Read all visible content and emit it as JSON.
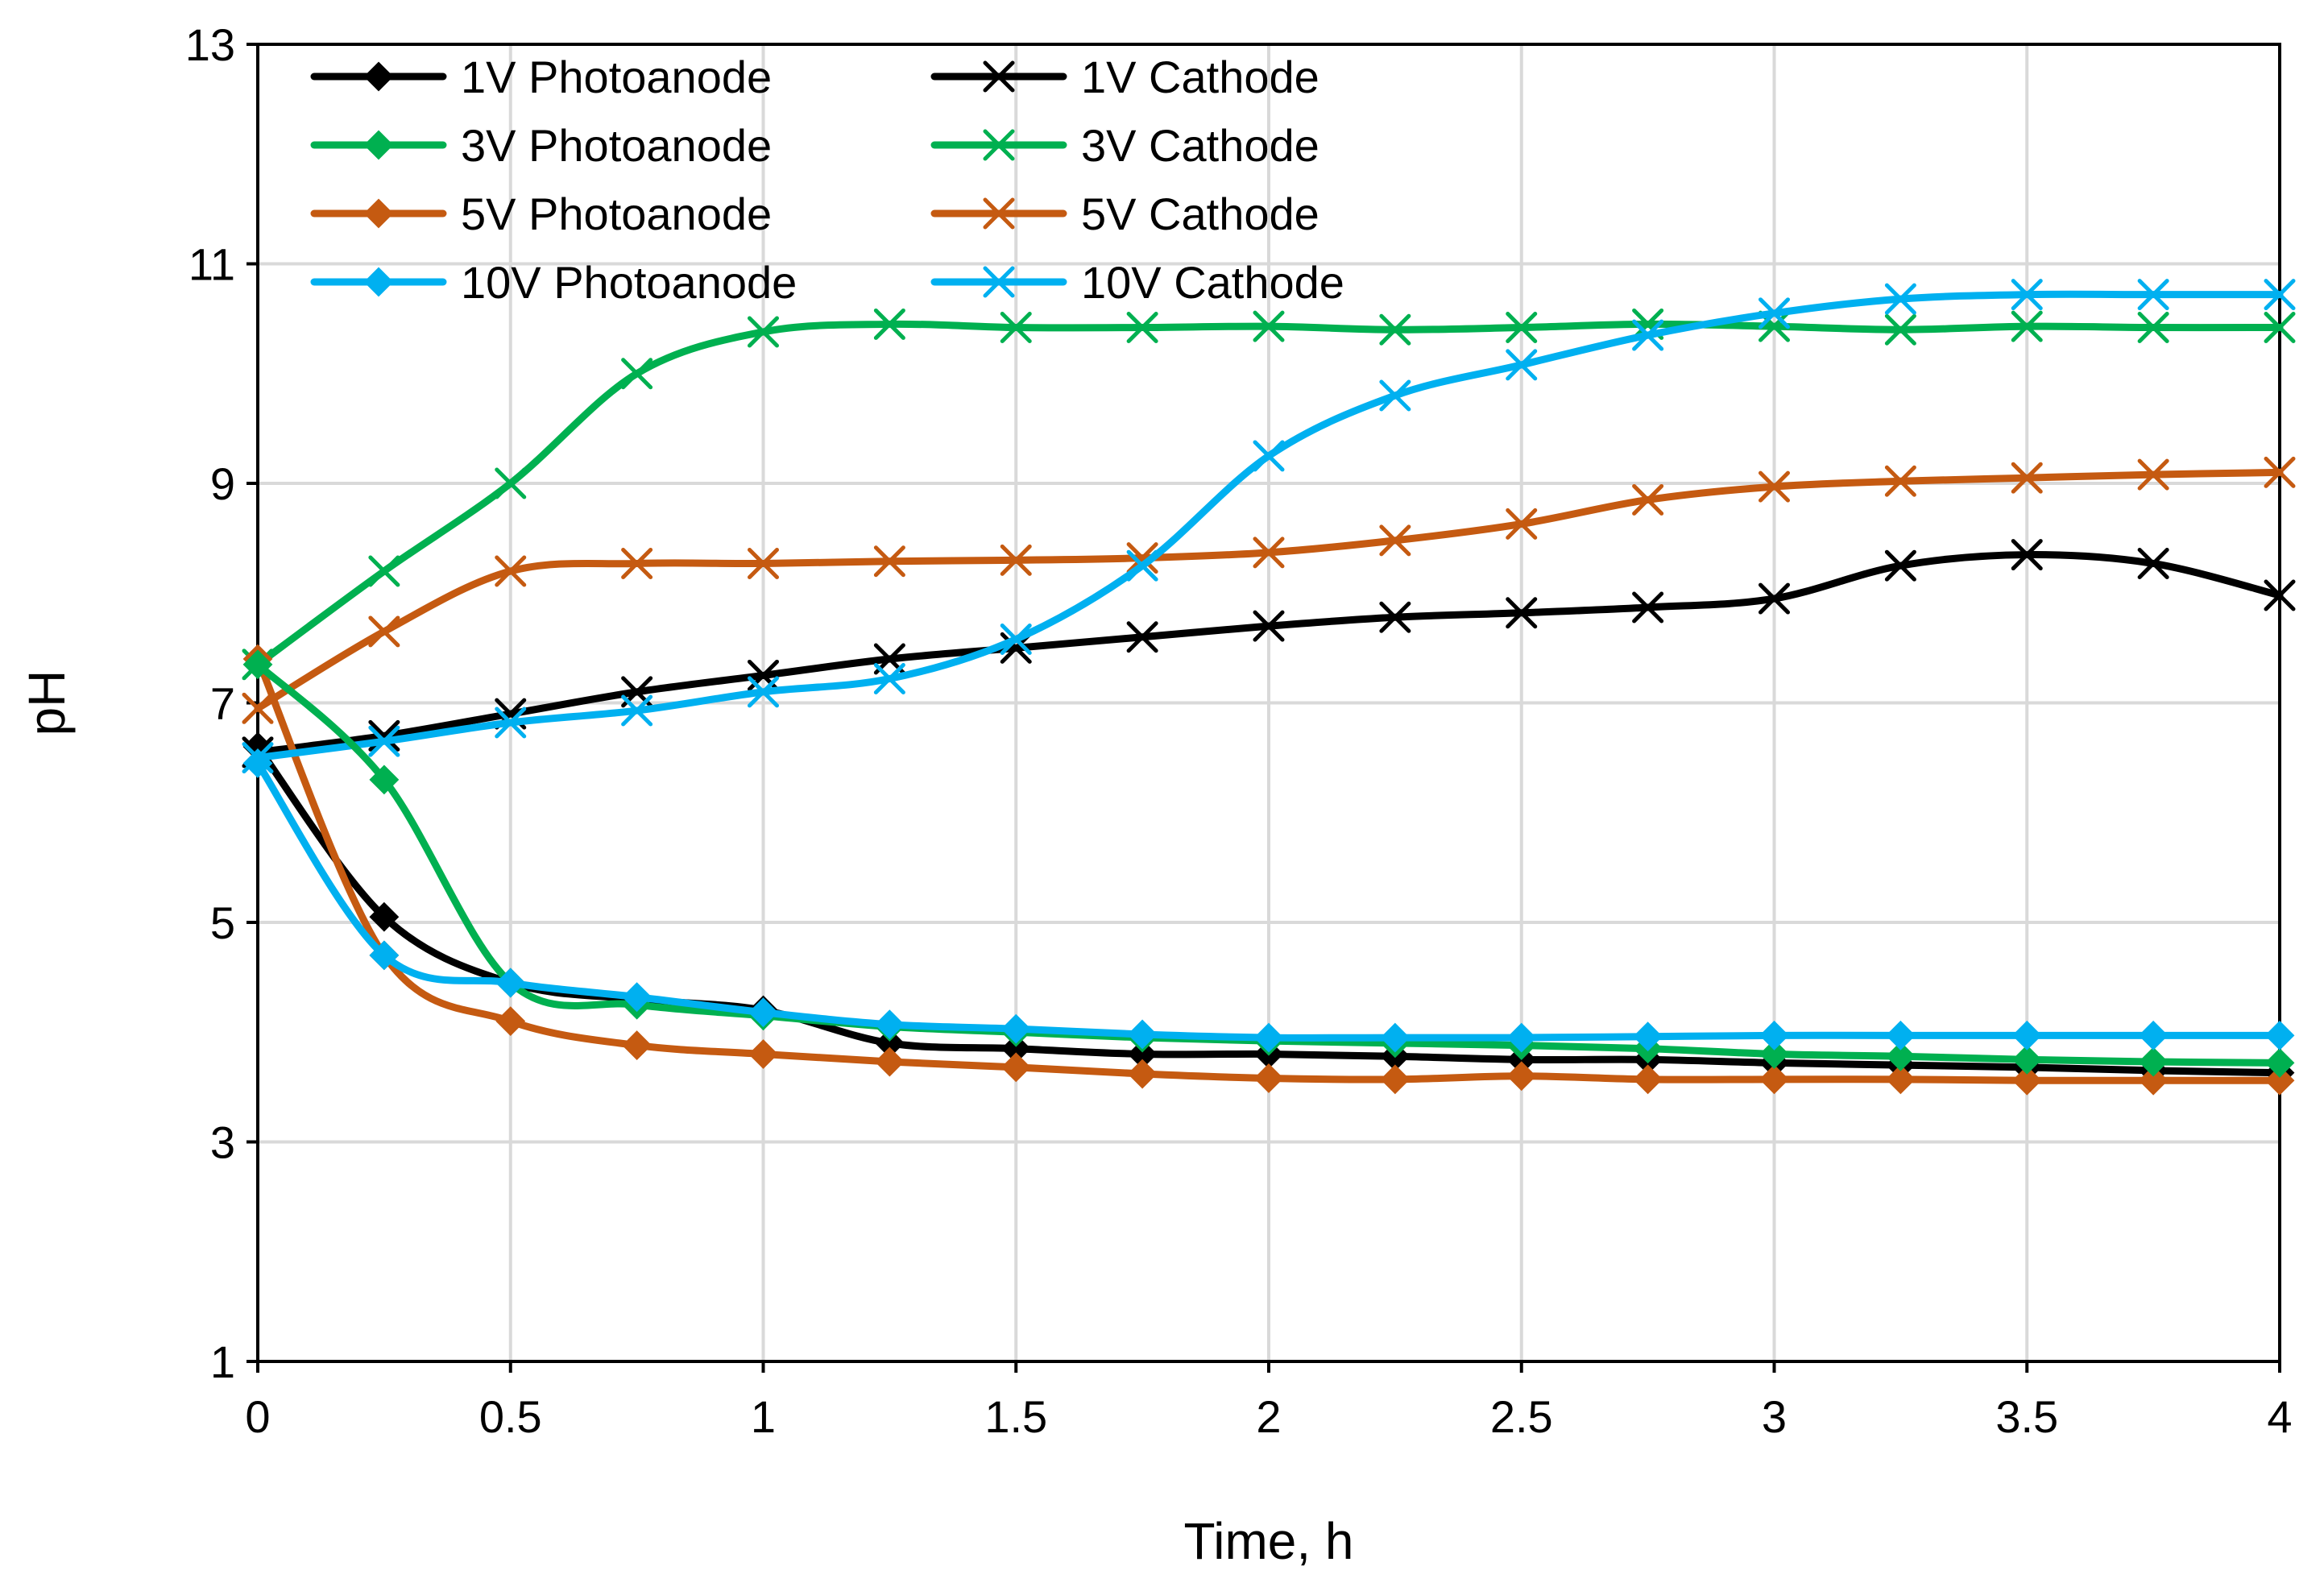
{
  "chart_data": {
    "type": "line",
    "title": "",
    "xlabel": "Time, h",
    "ylabel": "pH",
    "xlim": [
      0,
      4
    ],
    "ylim": [
      1,
      13
    ],
    "xticks": [
      0,
      0.5,
      1,
      1.5,
      2,
      2.5,
      3,
      3.5,
      4
    ],
    "xtick_labels": [
      "0",
      "0.5",
      "1",
      "1.5",
      "2",
      "2.5",
      "3",
      "3.5",
      "4"
    ],
    "yticks": [
      1,
      3,
      5,
      7,
      9,
      11,
      13
    ],
    "ytick_labels": [
      "1",
      "3",
      "5",
      "7",
      "9",
      "11",
      "13"
    ],
    "grid": true,
    "legend_position": "top-left",
    "x": [
      0,
      0.25,
      0.5,
      0.75,
      1,
      1.25,
      1.5,
      1.75,
      2,
      2.25,
      2.5,
      2.75,
      3,
      3.25,
      3.5,
      3.75,
      4
    ],
    "series": [
      {
        "name": "1V Photoanode",
        "color": "#000000",
        "marker": "diamond",
        "values": [
          6.6,
          5.05,
          4.45,
          4.3,
          4.2,
          3.9,
          3.85,
          3.8,
          3.8,
          3.78,
          3.75,
          3.75,
          3.72,
          3.7,
          3.68,
          3.65,
          3.63
        ]
      },
      {
        "name": "1V Cathode",
        "color": "#000000",
        "marker": "cross",
        "values": [
          6.55,
          6.7,
          6.9,
          7.1,
          7.25,
          7.4,
          7.5,
          7.6,
          7.7,
          7.78,
          7.82,
          7.87,
          7.95,
          8.25,
          8.35,
          8.27,
          7.98
        ]
      },
      {
        "name": "3V Photoanode",
        "color": "#00B050",
        "marker": "diamond",
        "values": [
          7.35,
          6.3,
          4.45,
          4.25,
          4.15,
          4.05,
          4.0,
          3.95,
          3.92,
          3.9,
          3.88,
          3.85,
          3.8,
          3.78,
          3.75,
          3.73,
          3.72
        ]
      },
      {
        "name": "3V Cathode",
        "color": "#00B050",
        "marker": "cross",
        "values": [
          7.35,
          8.2,
          9.0,
          10.0,
          10.38,
          10.45,
          10.42,
          10.42,
          10.43,
          10.4,
          10.42,
          10.45,
          10.43,
          10.4,
          10.43,
          10.42,
          10.42
        ]
      },
      {
        "name": "5V Photoanode",
        "color": "#C55A11",
        "marker": "diamond",
        "values": [
          7.4,
          4.7,
          4.1,
          3.88,
          3.8,
          3.73,
          3.68,
          3.62,
          3.58,
          3.57,
          3.6,
          3.57,
          3.57,
          3.57,
          3.56,
          3.56,
          3.56
        ]
      },
      {
        "name": "5V Cathode",
        "color": "#C55A11",
        "marker": "cross",
        "values": [
          6.95,
          7.65,
          8.2,
          8.27,
          8.27,
          8.29,
          8.3,
          8.32,
          8.37,
          8.48,
          8.63,
          8.85,
          8.97,
          9.02,
          9.05,
          9.08,
          9.1
        ]
      },
      {
        "name": "10V Photoanode",
        "color": "#00B0F0",
        "marker": "diamond",
        "values": [
          6.45,
          4.7,
          4.45,
          4.32,
          4.18,
          4.07,
          4.03,
          3.98,
          3.95,
          3.95,
          3.95,
          3.96,
          3.97,
          3.97,
          3.97,
          3.97,
          3.97
        ]
      },
      {
        "name": "10V Cathode",
        "color": "#00B0F0",
        "marker": "cross",
        "values": [
          6.5,
          6.65,
          6.82,
          6.93,
          7.1,
          7.22,
          7.58,
          8.25,
          9.25,
          9.8,
          10.08,
          10.35,
          10.55,
          10.68,
          10.72,
          10.72,
          10.72
        ]
      }
    ],
    "legend": [
      "1V Photoanode",
      "1V Cathode",
      "3V Photoanode",
      "3V Cathode",
      "5V Photoanode",
      "5V Cathode",
      "10V Photoanode",
      "10V Cathode"
    ]
  }
}
